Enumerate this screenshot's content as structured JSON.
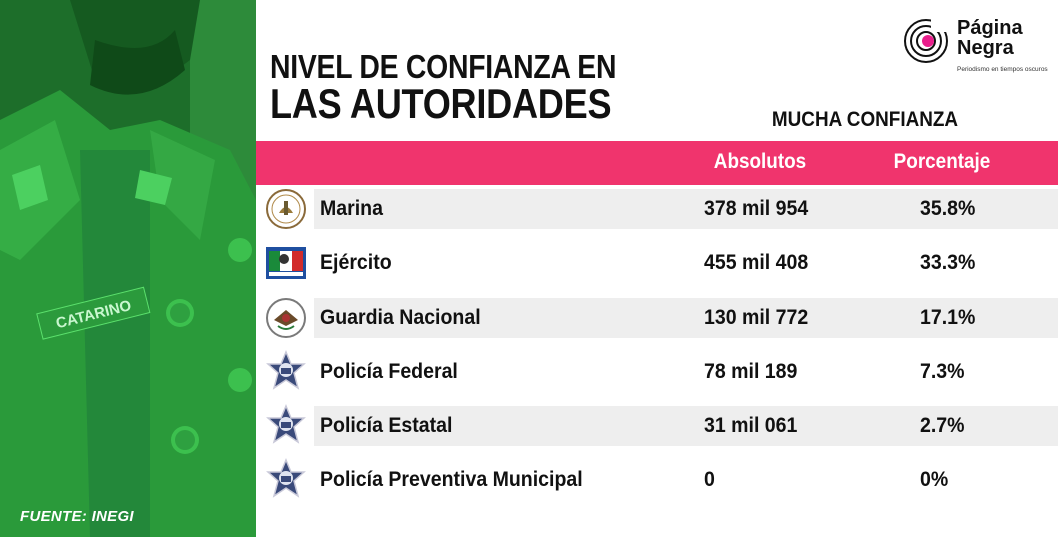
{
  "title": {
    "line1": "NIVEL DE CONFIANZA EN",
    "line2": "LAS AUTORIDADES"
  },
  "logo": {
    "name_line1": "Página",
    "name_line2": "Negra",
    "tagline": "Periodismo en tiempos oscuros",
    "accent": "#e91e8c"
  },
  "photo": {
    "name_tag": "CATARINO"
  },
  "source": "FUENTE: INEGI",
  "subheader": "MUCHA CONFIANZA",
  "colors": {
    "header_pink": "#f0346d",
    "row_stripe": "#eeeeee",
    "photo_green": "#1f7a2c"
  },
  "chart_data": {
    "type": "table",
    "columns": [
      "Absolutos",
      "Porcentaje"
    ],
    "rows": [
      {
        "name": "Marina",
        "absolutos": "378 mil 954",
        "porcentaje": "35.8%",
        "value": 35.8,
        "icon": "marina-seal-icon"
      },
      {
        "name": "Ejército",
        "absolutos": "455 mil 408",
        "porcentaje": "33.3%",
        "value": 33.3,
        "icon": "ejercito-flag-icon"
      },
      {
        "name": "Guardia Nacional",
        "absolutos": "130 mil 772",
        "porcentaje": "17.1%",
        "value": 17.1,
        "icon": "guardia-nacional-seal-icon"
      },
      {
        "name": "Policía Federal",
        "absolutos": "78 mil 189",
        "porcentaje": "7.3%",
        "value": 7.3,
        "icon": "police-star-badge-icon"
      },
      {
        "name": "Policía Estatal",
        "absolutos": "31 mil 061",
        "porcentaje": "2.7%",
        "value": 2.7,
        "icon": "police-star-badge-icon"
      },
      {
        "name": "Policía Preventiva Municipal",
        "absolutos": "0",
        "porcentaje": "0%",
        "value": 0,
        "icon": "police-star-badge-icon"
      }
    ]
  }
}
